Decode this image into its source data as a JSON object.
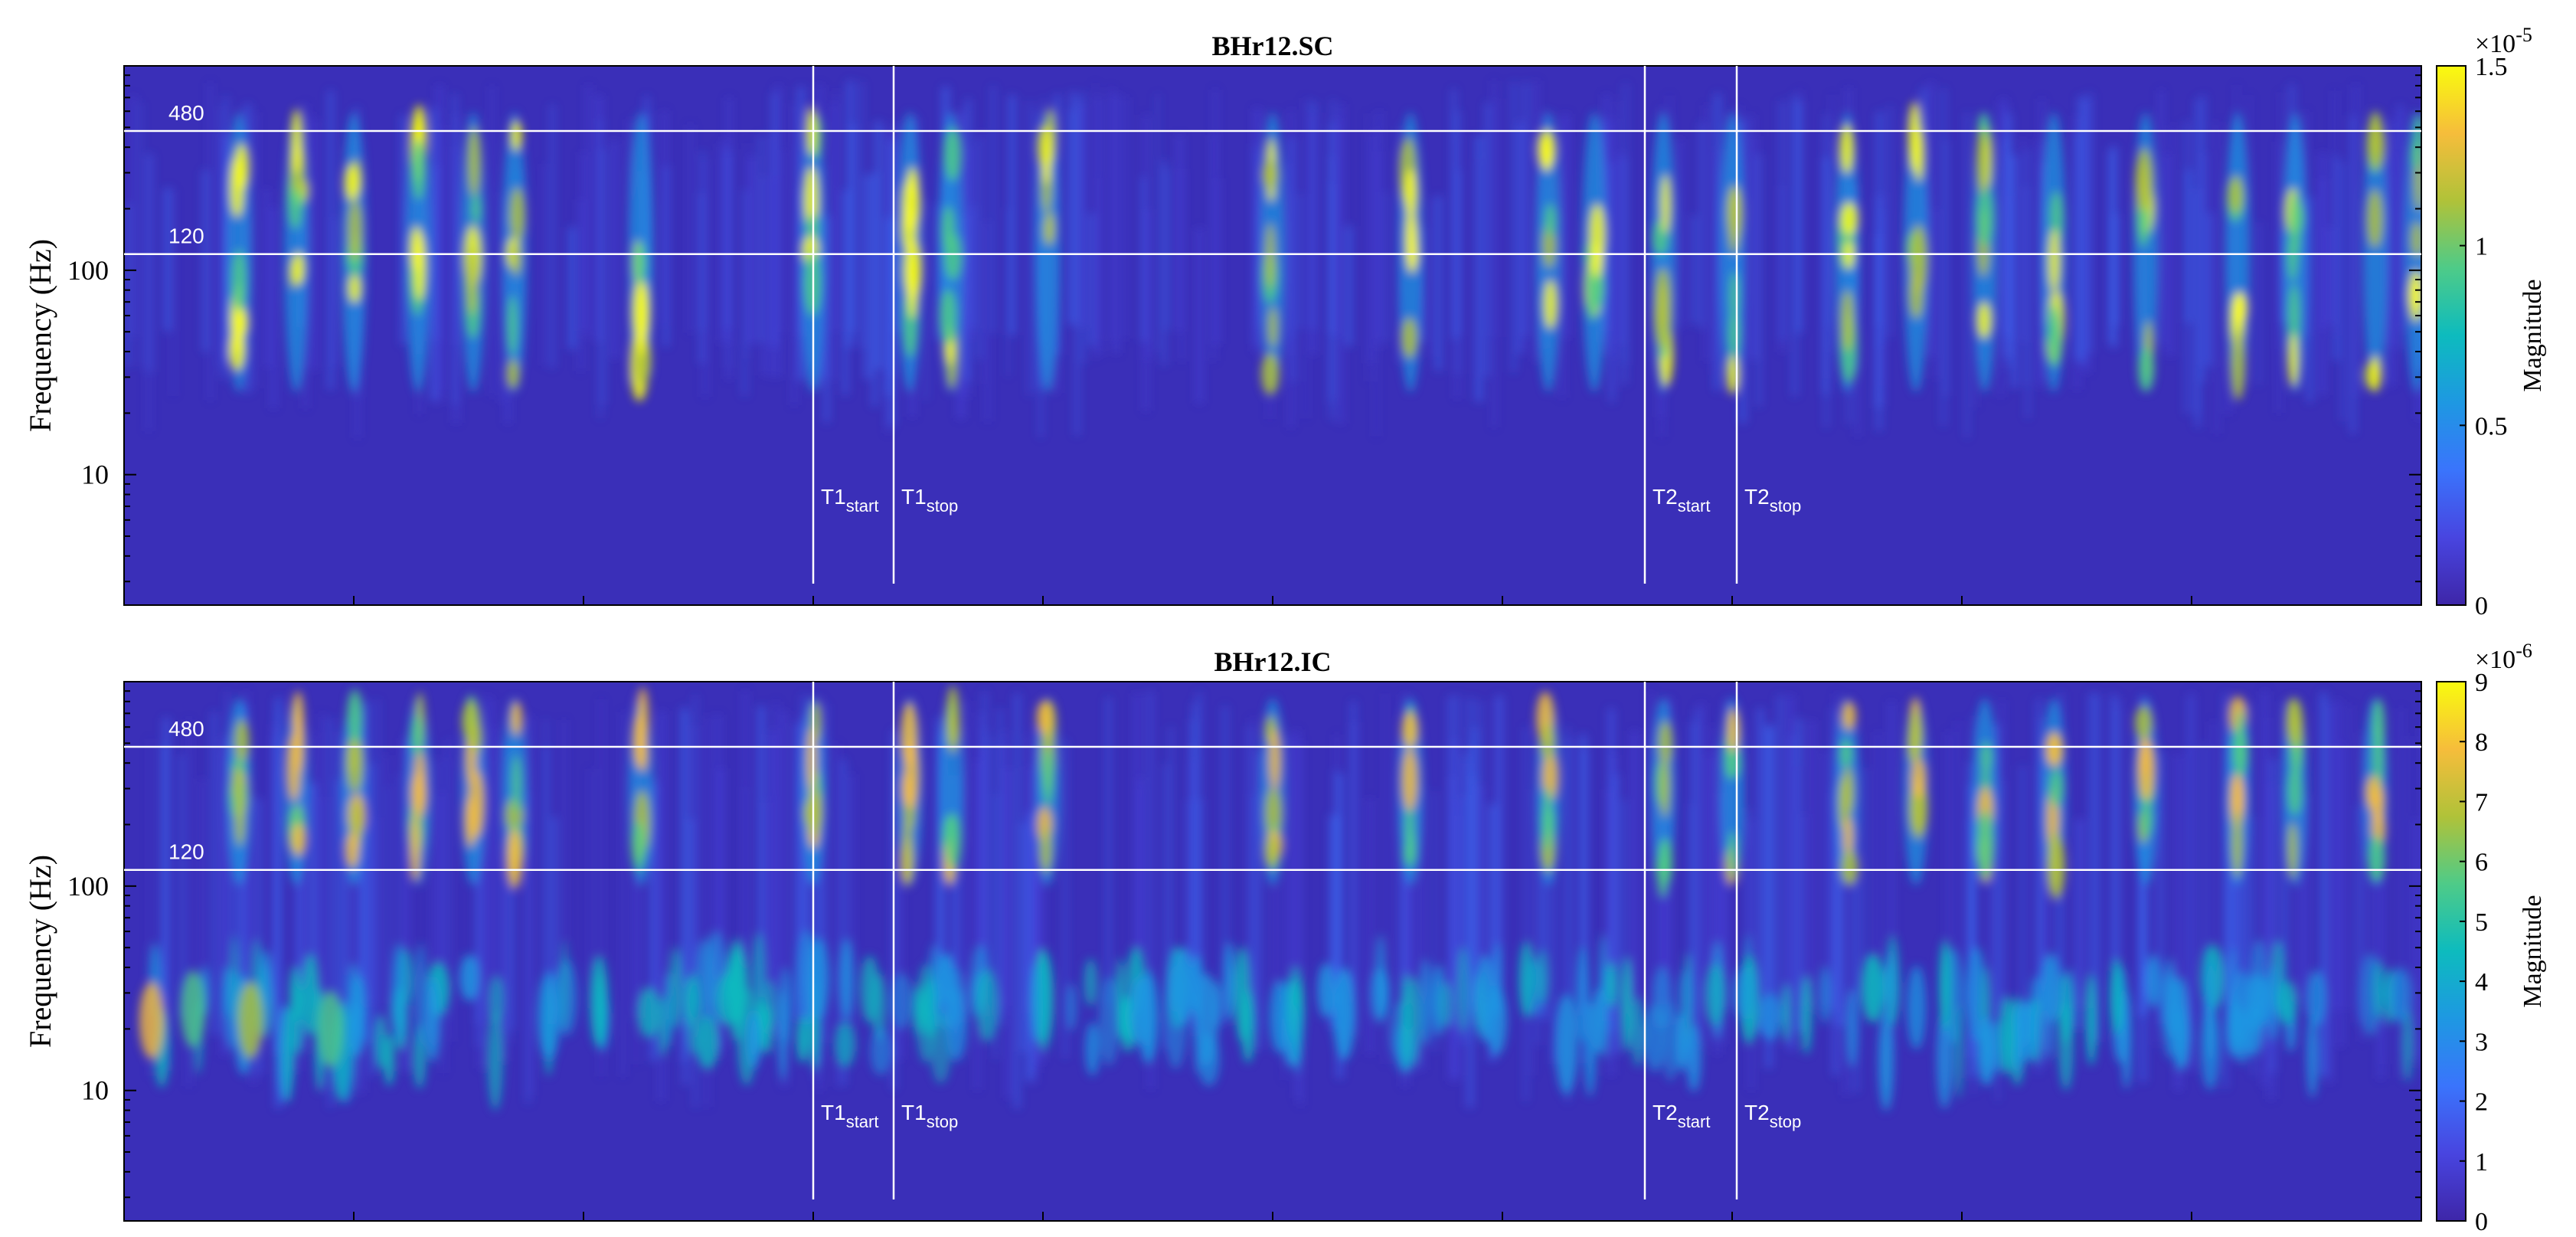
{
  "colors": {
    "background": "#3a2fb8",
    "colormap": [
      "#3e26a8",
      "#4845e0",
      "#3a74fc",
      "#1e98e2",
      "#0dbbbe",
      "#4ecb88",
      "#b0c239",
      "#f6bd3b",
      "#f9fb0e"
    ],
    "guide_lines": "#ffffff"
  },
  "chart_data": [
    {
      "type": "heatmap",
      "title": "BHr12.SC",
      "ylabel": "Frequency (Hz)",
      "yscale": "log",
      "ylim": [
        2.3,
        1000
      ],
      "yticks": [
        {
          "value": 10,
          "label": "10"
        },
        {
          "value": 100,
          "label": "100"
        }
      ],
      "reference_lines": [
        {
          "value": 480,
          "label": "480"
        },
        {
          "value": 120,
          "label": "120"
        }
      ],
      "colorbar": {
        "label": "Magnitude",
        "exponent": "-5",
        "exponent_prefix": "×10",
        "range": [
          0,
          1.5
        ],
        "ticks": [
          {
            "value": 0,
            "label": "0"
          },
          {
            "value": 0.5,
            "label": "0.5"
          },
          {
            "value": 1,
            "label": "1"
          },
          {
            "value": 1.5,
            "label": "1.5"
          }
        ]
      },
      "events": [
        0.05,
        0.075,
        0.1,
        0.128,
        0.152,
        0.17,
        0.225,
        0.3,
        0.342,
        0.36,
        0.402,
        0.5,
        0.56,
        0.62,
        0.64,
        0.67,
        0.7,
        0.75,
        0.78,
        0.81,
        0.84,
        0.88,
        0.92,
        0.945,
        0.98,
        0.998
      ]
    },
    {
      "type": "heatmap",
      "title": "BHr12.IC",
      "ylabel": "Frequency (Hz)",
      "yscale": "log",
      "ylim": [
        2.3,
        1000
      ],
      "yticks": [
        {
          "value": 10,
          "label": "10"
        },
        {
          "value": 100,
          "label": "100"
        }
      ],
      "reference_lines": [
        {
          "value": 480,
          "label": "480"
        },
        {
          "value": 120,
          "label": "120"
        }
      ],
      "colorbar": {
        "label": "Magnitude",
        "exponent": "-6",
        "exponent_prefix": "×10",
        "range": [
          0,
          9
        ],
        "ticks": [
          {
            "value": 0,
            "label": "0"
          },
          {
            "value": 1,
            "label": "1"
          },
          {
            "value": 2,
            "label": "2"
          },
          {
            "value": 3,
            "label": "3"
          },
          {
            "value": 4,
            "label": "4"
          },
          {
            "value": 5,
            "label": "5"
          },
          {
            "value": 6,
            "label": "6"
          },
          {
            "value": 7,
            "label": "7"
          },
          {
            "value": 8,
            "label": "8"
          },
          {
            "value": 9,
            "label": "9"
          }
        ]
      },
      "events": [
        0.05,
        0.075,
        0.1,
        0.128,
        0.152,
        0.17,
        0.225,
        0.3,
        0.342,
        0.36,
        0.402,
        0.5,
        0.56,
        0.62,
        0.67,
        0.7,
        0.75,
        0.78,
        0.81,
        0.84,
        0.88,
        0.92,
        0.945,
        0.98
      ]
    }
  ],
  "time_markers": [
    {
      "pos": 0.3,
      "main": "T1",
      "sub": "start"
    },
    {
      "pos": 0.335,
      "main": "T1",
      "sub": "stop"
    },
    {
      "pos": 0.662,
      "main": "T2",
      "sub": "start"
    },
    {
      "pos": 0.702,
      "main": "T2",
      "sub": "stop"
    }
  ]
}
